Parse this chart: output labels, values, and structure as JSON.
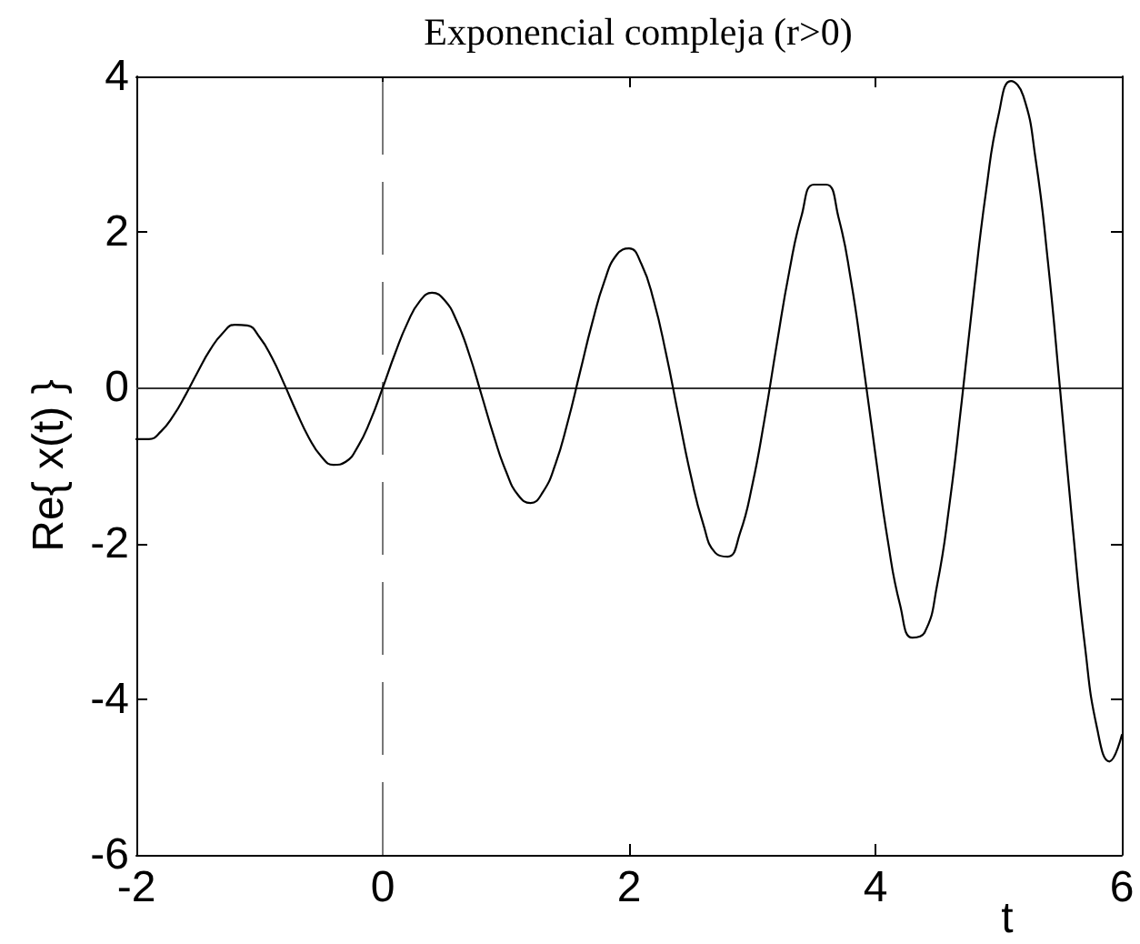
{
  "chart_data": {
    "type": "line",
    "title": "Exponencial compleja (r>0)",
    "xlabel": "t",
    "ylabel": "Re{ x(t) }",
    "x": [
      -2,
      -1.9,
      -1.8,
      -1.7,
      -1.6,
      -1.5,
      -1.4,
      -1.3,
      -1.2,
      -1.1,
      -1,
      -0.9,
      -0.8,
      -0.7,
      -0.6,
      -0.5,
      -0.4,
      -0.3,
      -0.2,
      -0.1,
      0,
      0.1,
      0.2,
      0.3,
      0.4,
      0.5,
      0.6,
      0.7,
      0.8,
      0.9,
      1,
      1.1,
      1.2,
      1.3,
      1.4,
      1.5,
      1.6,
      1.7,
      1.8,
      1.9,
      2,
      2.1,
      2.2,
      2.3,
      2.4,
      2.5,
      2.6,
      2.7,
      2.8,
      2.9,
      3,
      3.1,
      3.2,
      3.3,
      3.4,
      3.5,
      3.6,
      3.7,
      3.8,
      3.9,
      4,
      4.1,
      4.2,
      4.3,
      4.4,
      4.5,
      4.6,
      4.7,
      4.8,
      4.9,
      5,
      5.1,
      5.2,
      5.3,
      5.4,
      5.5,
      5.6,
      5.7,
      5.8,
      5.9,
      6
    ],
    "series": [
      {
        "color": "#000000",
        "values": [
          -0.66,
          -0.66,
          -0.56,
          -0.36,
          -0.09,
          0.21,
          0.49,
          0.7,
          0.81,
          0.8,
          0.65,
          0.39,
          0.05,
          -0.31,
          -0.64,
          -0.88,
          -0.99,
          -0.95,
          -0.75,
          -0.42,
          0,
          0.44,
          0.83,
          1.11,
          1.22,
          1.13,
          0.86,
          0.44,
          -0.08,
          -0.61,
          -1.07,
          -1.38,
          -1.48,
          -1.34,
          -0.99,
          -0.45,
          0.19,
          0.83,
          1.37,
          1.71,
          1.79,
          1.59,
          1.12,
          0.44,
          -0.35,
          -1.12,
          -1.74,
          -2.12,
          -2.17,
          -1.87,
          -1.25,
          -0.4,
          0.57,
          1.49,
          2.21,
          2.61,
          2.61,
          2.19,
          1.39,
          0.31,
          -0.86,
          -1.96,
          -2.79,
          -3.21,
          -3.14,
          -2.54,
          -1.51,
          -0.18,
          1.25,
          2.55,
          3.51,
          3.94,
          3.75,
          2.94,
          1.62,
          -0.04,
          -1.77,
          -3.31,
          -4.38,
          -4.8,
          -4.46
        ]
      }
    ],
    "xlim": [
      -2,
      6
    ],
    "ylim": [
      -6,
      4
    ],
    "xticks": [
      -2,
      0,
      2,
      4,
      6
    ],
    "yticks": [
      -6,
      -4,
      -2,
      0,
      2,
      4
    ],
    "ref_lines": [
      {
        "axis": "y",
        "value": 0,
        "color": "#333333"
      },
      {
        "axis": "x",
        "value": 0,
        "color": "#777777",
        "line_style": "dashed"
      }
    ]
  }
}
